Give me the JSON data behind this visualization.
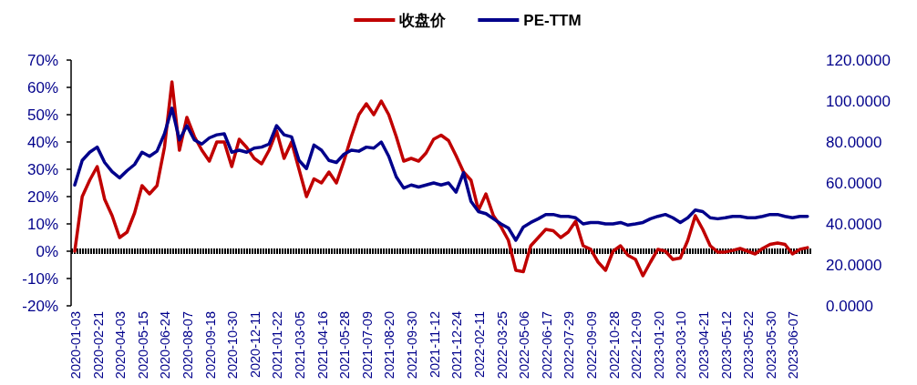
{
  "chart_data": {
    "type": "line",
    "legend": "top",
    "grid": false,
    "marker": "none",
    "line_style": "solid",
    "categories": [
      "2020-01-03",
      null,
      null,
      "2020-02-21",
      null,
      null,
      "2020-04-03",
      null,
      null,
      "2020-05-15",
      null,
      null,
      "2020-06-24",
      null,
      null,
      "2020-08-07",
      null,
      null,
      "2020-09-18",
      null,
      null,
      "2020-10-30",
      null,
      null,
      "2020-12-11",
      null,
      null,
      "2021-01-22",
      null,
      null,
      "2021-03-05",
      null,
      null,
      "2021-04-16",
      null,
      null,
      "2021-05-28",
      null,
      null,
      "2021-07-09",
      null,
      null,
      "2021-08-20",
      null,
      null,
      "2021-09-30",
      null,
      null,
      "2021-11-12",
      null,
      null,
      "2021-12-24",
      null,
      null,
      "2022-02-11",
      null,
      null,
      "2022-03-25",
      null,
      null,
      "2022-05-06",
      null,
      null,
      "2022-06-17",
      null,
      null,
      "2022-07-29",
      null,
      null,
      "2022-09-09",
      null,
      null,
      "2022-10-28",
      null,
      null,
      "2022-12-09",
      null,
      null,
      "2023-01-20",
      null,
      null,
      "2023-03-10",
      null,
      null,
      "2023-04-21",
      null,
      null,
      "2023-05-12",
      null,
      null,
      "2023-05-22",
      null,
      null,
      "2023-05-30",
      null,
      null,
      "2023-06-07",
      null,
      null
    ],
    "ylim": [
      -20,
      70
    ],
    "yticks": [
      {
        "value": -20,
        "label": "-20%"
      },
      {
        "value": -10,
        "label": "-10%"
      },
      {
        "value": 0,
        "label": "0%"
      },
      {
        "value": 10,
        "label": "10%"
      },
      {
        "value": 20,
        "label": "20%"
      },
      {
        "value": 30,
        "label": "30%"
      },
      {
        "value": 40,
        "label": "40%"
      },
      {
        "value": 50,
        "label": "50%"
      },
      {
        "value": 60,
        "label": "60%"
      },
      {
        "value": 70,
        "label": "70%"
      }
    ],
    "ref_lines": [
      {
        "axis": "y",
        "value": 0,
        "color": "#000000",
        "line_style": "dotted"
      }
    ],
    "y2lim": [
      0,
      120
    ],
    "y2ticks": [
      {
        "value": 0,
        "label": "0.0000"
      },
      {
        "value": 20,
        "label": "20.0000"
      },
      {
        "value": 40,
        "label": "40.0000"
      },
      {
        "value": 60,
        "label": "60.0000"
      },
      {
        "value": 80,
        "label": "80.0000"
      },
      {
        "value": 100,
        "label": "100.0000"
      },
      {
        "value": 120,
        "label": "120.0000"
      }
    ],
    "series": [
      {
        "name": "收盘价",
        "color": "#c00000",
        "values": [
          0,
          20,
          26,
          31,
          19,
          13,
          5,
          7,
          14,
          24,
          21,
          24,
          38,
          62,
          37,
          49,
          42,
          37,
          33,
          40,
          40,
          31,
          41,
          38,
          34,
          32,
          37,
          44,
          34,
          40,
          30,
          20,
          26.5,
          25,
          29,
          25,
          33,
          42,
          50,
          54,
          50,
          55,
          50,
          42,
          33,
          34,
          33,
          36,
          41,
          42.5,
          40.5,
          35,
          29,
          26,
          15,
          21,
          13,
          9,
          4,
          -7,
          -7.5,
          2,
          5,
          8,
          7.5,
          5,
          7,
          11,
          2,
          0.7,
          -4,
          -7,
          0,
          2,
          -1.5,
          -3,
          -9,
          -4,
          0.7,
          0,
          -3,
          -2.5,
          4,
          13,
          8,
          2,
          -0.3,
          -0.3,
          0.3,
          1,
          0,
          -1,
          1,
          2.5,
          3,
          2.5,
          -1,
          0.7,
          1.3
        ]
      },
      {
        "name": "PE-TTM",
        "color": "#00008b",
        "axis": "y2",
        "values": [
          59,
          71,
          75,
          77.5,
          70,
          65.5,
          62.5,
          66,
          69,
          75,
          73,
          75.5,
          84,
          96.5,
          81,
          88,
          81,
          79,
          82,
          83.5,
          84,
          75,
          76,
          75,
          77,
          77.5,
          79,
          88,
          83.5,
          82.5,
          71,
          67,
          78.5,
          76,
          71,
          70,
          74,
          76,
          75.5,
          77.5,
          77,
          80,
          73,
          63,
          57.5,
          59,
          58,
          59,
          60,
          59,
          60,
          55.5,
          65,
          51,
          46,
          45,
          42.5,
          40,
          38,
          32,
          38.5,
          40.7,
          42.5,
          44.6,
          44.6,
          43.7,
          43.7,
          43,
          40,
          40.7,
          40.7,
          40,
          40,
          40.7,
          39.4,
          40,
          40.7,
          42.5,
          43.7,
          44.6,
          43,
          40.7,
          43,
          46.8,
          46,
          43,
          42.5,
          43,
          43.7,
          43.7,
          43,
          43,
          43.7,
          44.6,
          44.6,
          43.7,
          43,
          43.7,
          43.7
        ]
      }
    ]
  }
}
